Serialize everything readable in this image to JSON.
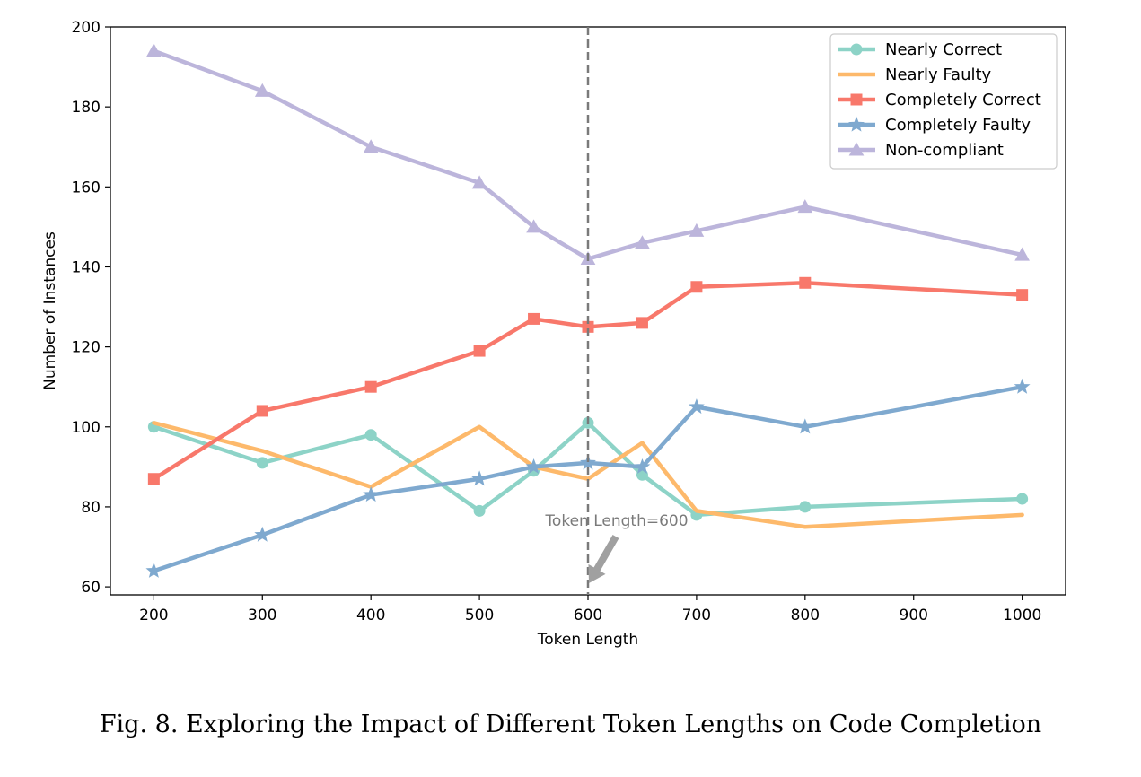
{
  "caption": "Fig. 8.  Exploring the Impact of Different Token Lengths on Code Completion",
  "chart_data": {
    "type": "line",
    "title": "",
    "xlabel": "Token Length",
    "ylabel": "Number of Instances",
    "xlim": [
      160,
      1040
    ],
    "ylim": [
      58,
      200
    ],
    "xticks": [
      200,
      300,
      400,
      500,
      600,
      700,
      800,
      900,
      1000
    ],
    "yticks": [
      60,
      80,
      100,
      120,
      140,
      160,
      180,
      200
    ],
    "x": [
      200,
      300,
      400,
      500,
      550,
      600,
      650,
      700,
      800,
      1000
    ],
    "grid": false,
    "legend_position": "top-right",
    "series": [
      {
        "name": "Nearly Correct",
        "color": "#8dd3c7",
        "marker": "circle",
        "values": [
          100,
          91,
          98,
          79,
          89,
          101,
          88,
          78,
          80,
          82
        ]
      },
      {
        "name": "Nearly Faulty",
        "color": "#fdb96b",
        "marker": "none",
        "values": [
          101,
          94,
          85,
          100,
          90,
          87,
          96,
          79,
          75,
          78
        ]
      },
      {
        "name": "Completely Correct",
        "color": "#f8786b",
        "marker": "square",
        "values": [
          87,
          104,
          110,
          119,
          127,
          125,
          126,
          135,
          136,
          133
        ]
      },
      {
        "name": "Completely Faulty",
        "color": "#7fa9cf",
        "marker": "star",
        "values": [
          64,
          73,
          83,
          87,
          90,
          91,
          90,
          105,
          100,
          110
        ]
      },
      {
        "name": "Non-compliant",
        "color": "#bcb5db",
        "marker": "triangle",
        "values": [
          194,
          184,
          170,
          161,
          150,
          142,
          146,
          149,
          155,
          143
        ]
      }
    ],
    "annotation": {
      "text": "Token Length=600",
      "x": 600,
      "line_color": "#7a7a7a",
      "arrow_color": "#a0a0a0"
    }
  }
}
